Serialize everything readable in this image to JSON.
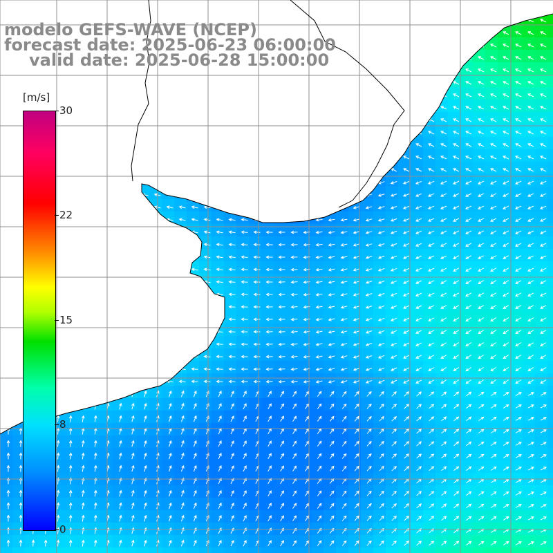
{
  "title": {
    "line1": "modelo GEFS-WAVE (NCEP)",
    "line2": "forecast date: 2025-06-23 06:00:00",
    "line3": "valid date: 2025-06-28 15:00:00"
  },
  "colorbar": {
    "unit": "[m/s]",
    "min": 0,
    "max": 30,
    "ticks": [
      "30",
      "22",
      "15",
      "8",
      "0"
    ],
    "colors": [
      "#0000ff",
      "#0090ff",
      "#00e0ff",
      "#00ffaa",
      "#00e000",
      "#ffff00",
      "#ff0000",
      "#c00080"
    ]
  },
  "map": {
    "land_color": "#ffffff",
    "grid_color": "#8f8f8f",
    "arrow_color": "#ffffff",
    "coast_color": "#000000"
  }
}
